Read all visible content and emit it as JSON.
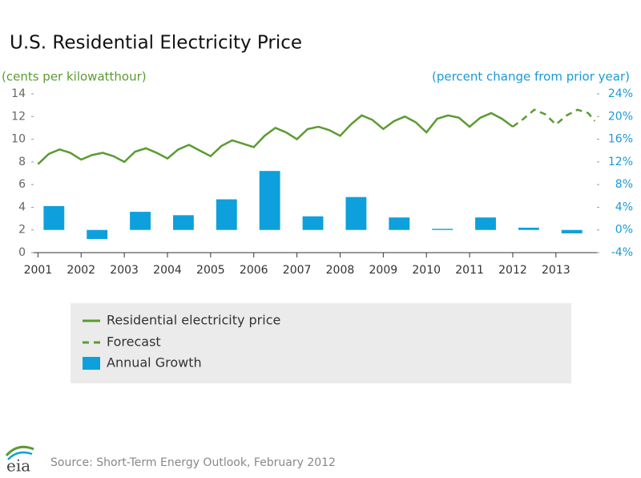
{
  "chart_data": {
    "type": "line",
    "title": "U.S. Residential Electricity Price",
    "y_label": "(cents per kilowatthour)",
    "y2_label": "(percent change from prior year)",
    "xlim": [
      2000.9,
      2013.95
    ],
    "xticks": [
      2001,
      2002,
      2003,
      2004,
      2005,
      2006,
      2007,
      2008,
      2009,
      2010,
      2011,
      2012,
      2013
    ],
    "ylim": [
      0,
      14
    ],
    "yticks": [
      0,
      2,
      4,
      6,
      8,
      10,
      12,
      14
    ],
    "y2lim": [
      -4,
      24
    ],
    "y2ticks": [
      {
        "value": -4,
        "label": "-4%"
      },
      {
        "value": 0,
        "label": "0%"
      },
      {
        "value": 4,
        "label": "4%"
      },
      {
        "value": 8,
        "label": "8%"
      },
      {
        "value": 12,
        "label": "12%"
      },
      {
        "value": 16,
        "label": "16%"
      },
      {
        "value": 20,
        "label": "20%"
      },
      {
        "value": 24,
        "label": "24%"
      }
    ],
    "series": [
      {
        "name": "Residential electricity price",
        "color": "#5b9b32",
        "style": "solid",
        "x": [
          2001,
          2001.25,
          2001.5,
          2001.75,
          2002,
          2002.25,
          2002.5,
          2002.75,
          2003,
          2003.25,
          2003.5,
          2003.75,
          2004,
          2004.25,
          2004.5,
          2004.75,
          2005,
          2005.25,
          2005.5,
          2005.75,
          2006,
          2006.25,
          2006.5,
          2006.75,
          2007,
          2007.25,
          2007.5,
          2007.75,
          2008,
          2008.25,
          2008.5,
          2008.75,
          2009,
          2009.25,
          2009.5,
          2009.75,
          2010,
          2010.25,
          2010.5,
          2010.75,
          2011,
          2011.25,
          2011.5,
          2011.75,
          2012
        ],
        "values": [
          7.8,
          8.7,
          9.1,
          8.8,
          8.2,
          8.6,
          8.8,
          8.5,
          8.0,
          8.9,
          9.2,
          8.8,
          8.3,
          9.1,
          9.5,
          9.0,
          8.5,
          9.4,
          9.9,
          9.6,
          9.3,
          10.3,
          11.0,
          10.6,
          10.0,
          10.9,
          11.1,
          10.8,
          10.3,
          11.3,
          12.1,
          11.7,
          10.9,
          11.6,
          12.0,
          11.5,
          10.6,
          11.8,
          12.1,
          11.9,
          11.1,
          11.9,
          12.3,
          11.8,
          11.1
        ]
      },
      {
        "name": "Forecast",
        "color": "#5b9b32",
        "style": "dashed",
        "x": [
          2012,
          2012.25,
          2012.5,
          2012.75,
          2013,
          2013.25,
          2013.5,
          2013.75,
          2013.9
        ],
        "values": [
          11.1,
          11.8,
          12.6,
          12.2,
          11.3,
          12.1,
          12.6,
          12.3,
          11.6
        ]
      },
      {
        "name": "Annual Growth",
        "color": "#0ea0dc",
        "style": "bar",
        "axis": "y2",
        "x": [
          2001,
          2002,
          2003,
          2004,
          2005,
          2006,
          2007,
          2008,
          2009,
          2010,
          2011,
          2012,
          2013
        ],
        "values": [
          4.2,
          -1.6,
          3.2,
          2.6,
          5.4,
          10.4,
          2.4,
          5.8,
          2.2,
          0.2,
          2.2,
          0.4,
          -0.6
        ]
      }
    ]
  },
  "logo_text": "eia",
  "source": "Source: Short-Term Energy Outlook, February 2012"
}
